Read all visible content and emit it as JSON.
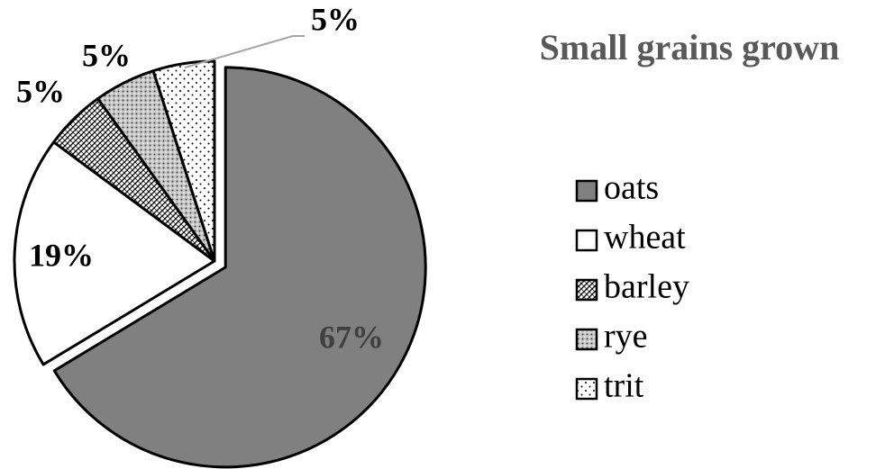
{
  "chart_data": {
    "type": "pie",
    "title": "Small grains grown",
    "categories": [
      "oats",
      "wheat",
      "barley",
      "rye",
      "trit"
    ],
    "values": [
      67,
      19,
      5,
      5,
      5
    ],
    "value_labels": [
      "67%",
      "19%",
      "5%",
      "5%",
      "5%"
    ],
    "colors": [
      "#808080",
      "#ffffff",
      "#ffffff",
      "#ffffff",
      "#ffffff"
    ],
    "patterns": [
      "solid",
      "solid",
      "crosshatch",
      "dense-dots",
      "sparse-dots"
    ],
    "legend": "right"
  }
}
